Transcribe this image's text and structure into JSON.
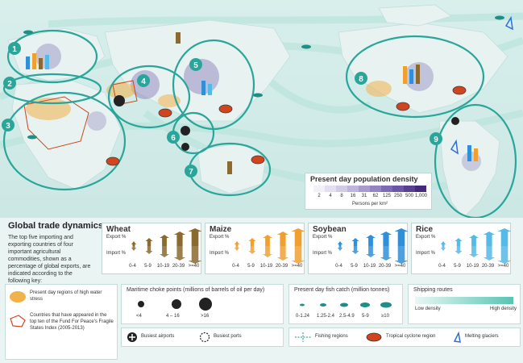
{
  "colors": {
    "ocean": "#cfe9e6",
    "land": "#e6f1f0",
    "highlight_ring": "#2aa59a",
    "wheat": "#8a6a2e",
    "maize": "#f0a030",
    "soybean": "#2f8fd8",
    "rice": "#56b9e8",
    "water_stress": "#f2b24a",
    "fragile_state": "#d0451e",
    "population_dense": "#5b3f9a"
  },
  "map": {
    "region_numbers": [
      "1",
      "2",
      "3",
      "4",
      "5",
      "6",
      "7",
      "8",
      "9"
    ],
    "icons": [
      "busiest-airport-icon",
      "busiest-port-icon",
      "choke-point-icon",
      "tropical-cyclone-icon",
      "melting-glacier-icon",
      "fish-icon"
    ]
  },
  "population_legend": {
    "title": "Present day population density",
    "ticks": [
      "2",
      "4",
      "8",
      "16",
      "31",
      "62",
      "125",
      "250",
      "500",
      "1,000"
    ],
    "unit": "Persons per km²",
    "ramp": [
      "#f3f1f8",
      "#e4dff0",
      "#d2cbe6",
      "#bfb5dc",
      "#a99bd0",
      "#9483c4",
      "#7d69b5",
      "#6a55a6",
      "#573f94",
      "#432a7e"
    ]
  },
  "trade": {
    "title": "Global trade dynamics",
    "description": "The top five importing and exporting countries of four important agricultural commodities, shown as a percentage of global exports, are indicated according to the following key:",
    "export_label": "Export %",
    "import_label": "Import %",
    "ranges": [
      "0-4",
      "5-9",
      "10-19",
      "20-39",
      ">=40"
    ],
    "commodities": [
      {
        "name": "Wheat"
      },
      {
        "name": "Maize"
      },
      {
        "name": "Soybean"
      },
      {
        "name": "Rice"
      }
    ]
  },
  "legend": {
    "water_stress": "Present day regions of high water stress",
    "fragile_states": "Countries that have appeared in the top ten of the Fund For Peace's Fragile States Index (2005-2013)",
    "choke_title": "Maritime choke points (millions of barrels of oil per day)",
    "choke_labels": [
      "<4",
      "4 – 16",
      ">16"
    ],
    "airports": "Busiest airports",
    "ports": "Busiest ports",
    "fish_title": "Present day fish catch (million tonnes)",
    "fish_labels": [
      "0-1.24",
      "1.25-2.4",
      "2.5-4.9",
      "5-9",
      "≥10"
    ],
    "shipping_title": "Shipping routes",
    "shipping_low": "Low density",
    "shipping_high": "High density",
    "fishing_regions": "Fishing regions",
    "cyclone": "Tropical cyclone region",
    "glaciers": "Melting glaciers"
  }
}
